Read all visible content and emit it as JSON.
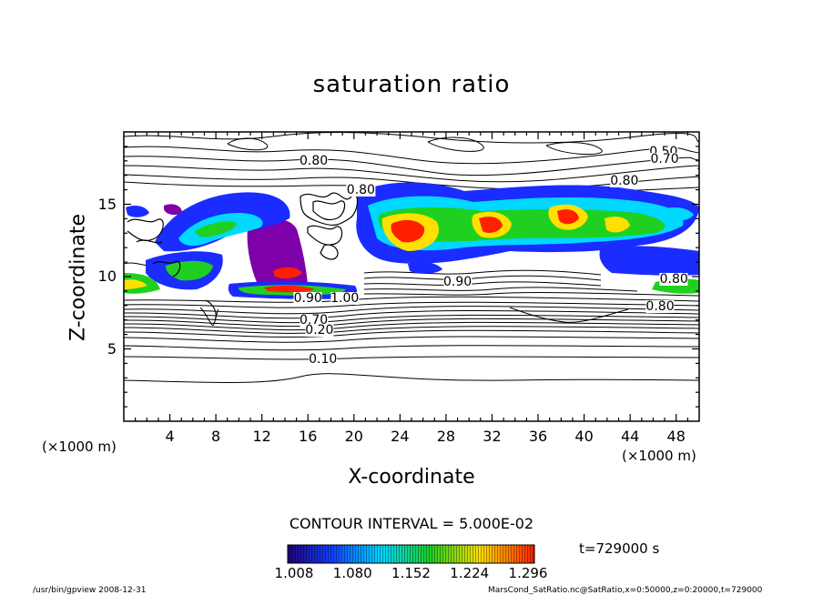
{
  "chart_data": {
    "type": "heatmap",
    "title": "saturation ratio",
    "xlabel": "X-coordinate",
    "ylabel": "Z-coordinate",
    "x_unit": "(×1000 m)",
    "z_unit": "(×1000 m)",
    "xlim": [
      0,
      50
    ],
    "ylim": [
      0,
      20
    ],
    "x_ticks": [
      4,
      8,
      12,
      16,
      20,
      24,
      28,
      32,
      36,
      40,
      44,
      48
    ],
    "y_ticks": [
      5,
      10,
      15
    ],
    "contour_labels": [
      "0.50",
      "0.70",
      "0.80",
      "0.80",
      "0.80",
      "0.80",
      "1.00",
      "0.90",
      "0.70",
      "0.20",
      "0.10",
      "0.90",
      "0.80"
    ],
    "colorbar": {
      "ticks": [
        "1.008",
        "1.080",
        "1.152",
        "1.224",
        "1.296"
      ],
      "colors": [
        "#20007a",
        "#1040ff",
        "#00d8ff",
        "#20d020",
        "#ffe000",
        "#ff2000"
      ]
    },
    "contour_interval": "CONTOUR INTERVAL = 5.000E-02",
    "time": "t=729000 s"
  },
  "footer": {
    "left": "/usr/bin/gpview   2008-12-31",
    "right": "MarsCond_SatRatio.nc@SatRatio,x=0:50000,z=0:20000,t=729000"
  }
}
